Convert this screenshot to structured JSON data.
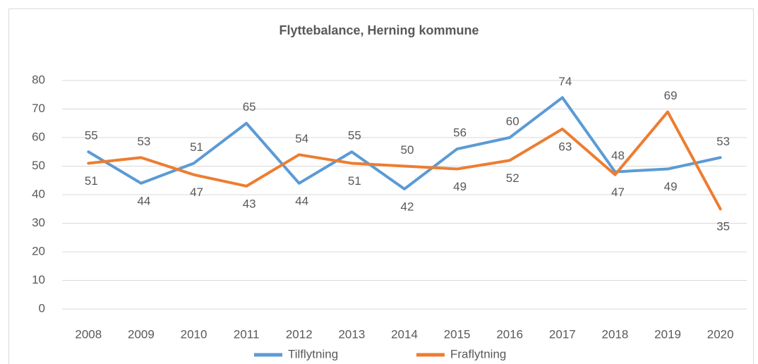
{
  "chart_data": {
    "type": "line",
    "title": "Flyttebalance, Herning kommune",
    "categories": [
      "2008",
      "2009",
      "2010",
      "2011",
      "2012",
      "2013",
      "2014",
      "2015",
      "2016",
      "2017",
      "2018",
      "2019",
      "2020"
    ],
    "series": [
      {
        "name": "Tilflytning",
        "color": "#5b9bd5",
        "values": [
          55,
          44,
          51,
          65,
          44,
          55,
          42,
          56,
          60,
          74,
          48,
          49,
          53
        ]
      },
      {
        "name": "Fraflytning",
        "color": "#ed7d31",
        "values": [
          51,
          53,
          47,
          43,
          54,
          51,
          50,
          49,
          52,
          63,
          47,
          69,
          35
        ]
      }
    ],
    "ylim": [
      0,
      80
    ],
    "yticks": [
      0,
      10,
      20,
      30,
      40,
      50,
      60,
      70,
      80
    ],
    "grid": true,
    "legend": "bottom"
  }
}
